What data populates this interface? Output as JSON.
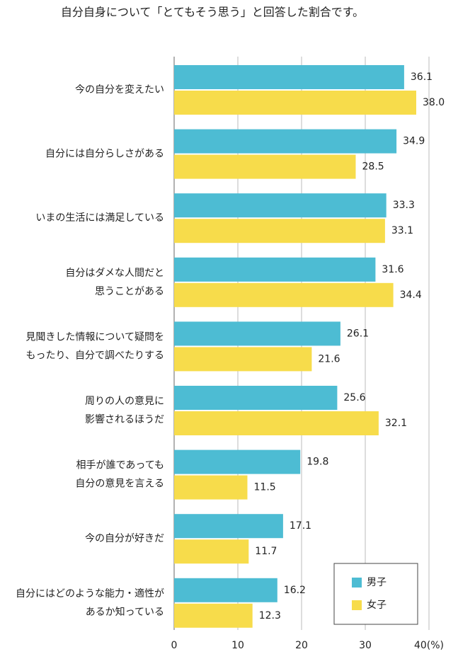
{
  "chart_data": {
    "type": "hbar",
    "title": "自分自身について「とてもそう思う」と回答した割合です。",
    "categories": [
      [
        "今の自分を変えたい"
      ],
      [
        "自分には自分らしさがある"
      ],
      [
        "いまの生活には満足している"
      ],
      [
        "自分はダメな人間だと",
        "思うことがある"
      ],
      [
        "見聞きした情報について疑問を",
        "もったり、自分で調べたりする"
      ],
      [
        "周りの人の意見に",
        "影響されるほうだ"
      ],
      [
        "相手が誰であっても",
        "自分の意見を言える"
      ],
      [
        "今の自分が好きだ"
      ],
      [
        "自分にはどのような能力・適性が",
        "あるか知っている"
      ]
    ],
    "series": [
      {
        "name": "男子",
        "color": "#4dbcd3",
        "values": [
          36.1,
          34.9,
          33.3,
          31.6,
          26.1,
          25.6,
          19.8,
          17.1,
          16.2
        ],
        "value_labels": [
          "36.1",
          "34.9",
          "33.3",
          "31.6",
          "26.1",
          "25.6",
          "19.8",
          "17.1",
          "16.2"
        ]
      },
      {
        "name": "女子",
        "color": "#f7dc4b",
        "values": [
          38.0,
          28.5,
          33.1,
          34.4,
          21.6,
          32.1,
          11.5,
          11.7,
          12.3
        ],
        "value_labels": [
          "38.0",
          "28.5",
          "33.1",
          "34.4",
          "21.6",
          "32.1",
          "11.5",
          "11.7",
          "12.3"
        ]
      }
    ],
    "xlim": [
      0,
      40
    ],
    "xticks": [
      0,
      10,
      20,
      30,
      {
        "value": 40,
        "label": "40(%)"
      }
    ],
    "grid": true,
    "legend": "lower-right"
  }
}
